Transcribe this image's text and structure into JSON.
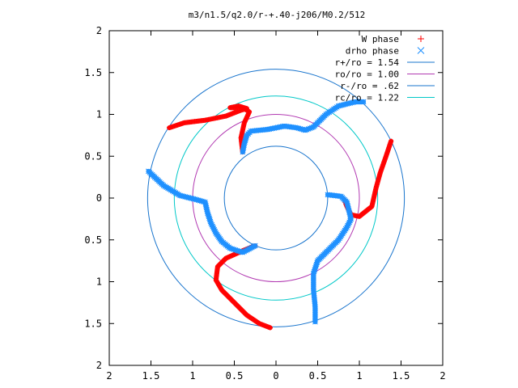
{
  "chart_data": {
    "type": "scatter",
    "title": "m3/n1.5/q2.0/r-+.40-j206/M0.2/512",
    "xlabel": "",
    "ylabel": "",
    "xlim": [
      -2,
      2
    ],
    "ylim": [
      -2,
      2
    ],
    "x_tick_labels": [
      "2",
      "1.5",
      "1",
      "0.5",
      "0",
      "0.5",
      "1",
      "1.5",
      "2"
    ],
    "y_tick_labels": [
      "2",
      "1.5",
      "1",
      "0.5",
      "0",
      "0.5",
      "1",
      "1.5",
      "2"
    ],
    "grid": false,
    "legend_position": "top-right",
    "colors": {
      "w_phase": "#ff0000",
      "drho_phase": "#1e90ff",
      "r_plus": "#1874cd",
      "r_o": "#b23ab2",
      "r_minus": "#1874cd",
      "r_c": "#00c8c8"
    },
    "series": [
      {
        "name": "W phase",
        "marker": "plus",
        "arms": [
          [
            [
              -1.28,
              0.84
            ],
            [
              -1.1,
              0.9
            ],
            [
              -0.85,
              0.93
            ],
            [
              -0.6,
              0.98
            ],
            [
              -0.42,
              1.05
            ],
            [
              -0.35,
              1.07
            ],
            [
              -0.45,
              1.1
            ],
            [
              -0.55,
              1.08
            ],
            [
              -0.4,
              1.08
            ],
            [
              -0.32,
              1.03
            ],
            [
              -0.38,
              0.9
            ],
            [
              -0.42,
              0.72
            ],
            [
              -0.4,
              0.55
            ]
          ],
          [
            [
              1.38,
              0.68
            ],
            [
              1.32,
              0.5
            ],
            [
              1.25,
              0.3
            ],
            [
              1.2,
              0.12
            ],
            [
              1.15,
              -0.1
            ],
            [
              1.0,
              -0.22
            ],
            [
              0.9,
              -0.2
            ],
            [
              0.85,
              -0.1
            ],
            [
              0.82,
              -0.02
            ]
          ],
          [
            [
              -0.25,
              -0.57
            ],
            [
              -0.4,
              -0.63
            ],
            [
              -0.6,
              -0.72
            ],
            [
              -0.7,
              -0.82
            ],
            [
              -0.72,
              -0.98
            ],
            [
              -0.65,
              -1.1
            ],
            [
              -0.5,
              -1.25
            ],
            [
              -0.35,
              -1.4
            ],
            [
              -0.2,
              -1.5
            ],
            [
              -0.07,
              -1.55
            ]
          ]
        ]
      },
      {
        "name": "drho phase",
        "marker": "cross",
        "arms": [
          [
            [
              -1.53,
              0.32
            ],
            [
              -1.35,
              0.15
            ],
            [
              -1.15,
              0.03
            ],
            [
              -0.95,
              -0.02
            ],
            [
              -0.85,
              -0.05
            ],
            [
              -0.82,
              -0.18
            ],
            [
              -0.78,
              -0.3
            ],
            [
              -0.72,
              -0.42
            ],
            [
              -0.65,
              -0.52
            ],
            [
              -0.55,
              -0.6
            ],
            [
              -0.4,
              -0.65
            ],
            [
              -0.25,
              -0.57
            ]
          ],
          [
            [
              -0.4,
              0.55
            ],
            [
              -0.38,
              0.65
            ],
            [
              -0.35,
              0.75
            ],
            [
              -0.3,
              0.8
            ],
            [
              -0.1,
              0.82
            ],
            [
              0.1,
              0.86
            ],
            [
              0.25,
              0.84
            ],
            [
              0.35,
              0.81
            ],
            [
              0.45,
              0.85
            ],
            [
              0.6,
              1.0
            ],
            [
              0.75,
              1.1
            ],
            [
              0.95,
              1.15
            ],
            [
              1.05,
              1.15
            ]
          ],
          [
            [
              0.62,
              0.04
            ],
            [
              0.78,
              0.02
            ],
            [
              0.85,
              -0.05
            ],
            [
              0.9,
              -0.25
            ],
            [
              0.85,
              -0.35
            ],
            [
              0.75,
              -0.5
            ],
            [
              0.6,
              -0.65
            ],
            [
              0.5,
              -0.75
            ],
            [
              0.45,
              -0.9
            ],
            [
              0.45,
              -1.1
            ],
            [
              0.47,
              -1.3
            ],
            [
              0.47,
              -1.48
            ]
          ]
        ]
      },
      {
        "name": "r+/ro = 1.54",
        "type": "circle",
        "radius": 1.54
      },
      {
        "name": "ro/ro = 1.00",
        "type": "circle",
        "radius": 1.0
      },
      {
        "name": "r-/ro = .62",
        "type": "circle",
        "radius": 0.62
      },
      {
        "name": "rc/ro = 1.22",
        "type": "circle",
        "radius": 1.22
      }
    ]
  }
}
